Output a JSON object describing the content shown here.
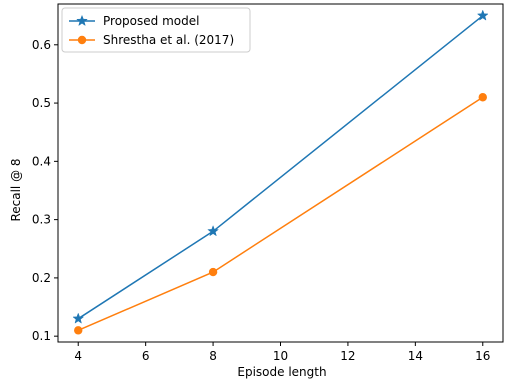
{
  "chart_data": {
    "type": "line",
    "title": "",
    "xlabel": "Episode length",
    "ylabel": "Recall @ 8",
    "xlim": [
      3.4,
      16.6
    ],
    "ylim": [
      0.09,
      0.67
    ],
    "xticks": [
      4,
      6,
      8,
      10,
      12,
      14,
      16
    ],
    "yticks": [
      0.1,
      0.2,
      0.3,
      0.4,
      0.5,
      0.6
    ],
    "xtick_labels": [
      "4",
      "6",
      "8",
      "10",
      "12",
      "14",
      "16"
    ],
    "ytick_labels": [
      "0.1",
      "0.2",
      "0.3",
      "0.4",
      "0.5",
      "0.6"
    ],
    "grid": false,
    "legend_position": "top-left",
    "series": [
      {
        "name": "Proposed model",
        "color": "#1f77b4",
        "marker": "star",
        "x": [
          4,
          8,
          16
        ],
        "values": [
          0.13,
          0.28,
          0.65
        ]
      },
      {
        "name": "Shrestha et al. (2017)",
        "color": "#ff7f0e",
        "marker": "circle",
        "x": [
          4,
          8,
          16
        ],
        "values": [
          0.11,
          0.21,
          0.51
        ]
      }
    ]
  }
}
